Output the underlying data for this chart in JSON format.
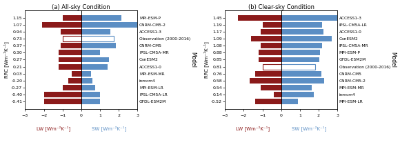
{
  "panel_a": {
    "title": "(a) All-sky Condition",
    "models": [
      "MPI-ESM-P",
      "CNRM-CM5-2",
      "ACCESS1-3",
      "Observation (2000-2016)",
      "CNRM-CM5",
      "IPSL-CM5A-MR",
      "CanESM2",
      "ACCESS1-0",
      "MPI-ESM-MR",
      "inmcm4",
      "MPI-ESM-LR",
      "IPSL-CM5A-LR",
      "GFDL-ESM2M"
    ],
    "rrc": [
      1.15,
      1.07,
      0.94,
      0.73,
      0.37,
      0.3,
      0.27,
      0.21,
      0.03,
      -0.2,
      -0.27,
      -0.4,
      -0.41
    ],
    "lw": [
      -1.0,
      -2.1,
      -1.1,
      -1.0,
      -1.1,
      -1.2,
      -1.2,
      -1.2,
      -0.5,
      -0.7,
      -1.0,
      -2.0,
      -2.0
    ],
    "sw": [
      2.15,
      3.17,
      1.55,
      1.73,
      1.87,
      1.0,
      1.47,
      1.41,
      0.53,
      0.6,
      0.73,
      1.0,
      1.0
    ],
    "obs_idx": 3,
    "xlim": [
      -3,
      3
    ],
    "xticks": [
      -3,
      -2,
      -1,
      0,
      1,
      2,
      3
    ],
    "xlabel_lw": "LW [Wm⁻²K⁻¹]",
    "xlabel_sw": "SW [Wm⁻²K⁻¹]",
    "ylabel": "RRC [Wm⁻²K⁻¹]",
    "ylabel_label": "Model"
  },
  "panel_b": {
    "title": "(b) Clear-sky Condition",
    "models": [
      "ACCESS1-3",
      "IPSL-CM5A-LR",
      "ACCESS1-0",
      "CanESM2",
      "IPSL-CM5A-MR",
      "MPI-ESM-P",
      "GFDL-ESM2M",
      "Observation (2000-2016)",
      "CNRM-CM5",
      "CNRM-CM5-2",
      "MPI-ESM-MR",
      "inmcm4",
      "MPI-ESM-LR"
    ],
    "rrc": [
      1.45,
      1.19,
      1.17,
      1.09,
      1.08,
      0.88,
      0.85,
      0.81,
      0.76,
      0.58,
      0.54,
      0.14,
      -0.52
    ],
    "lw": [
      -2.3,
      -1.0,
      -1.1,
      -1.6,
      -1.1,
      -1.2,
      -1.2,
      -1.0,
      -1.4,
      -1.7,
      -1.1,
      -0.4,
      -1.4
    ],
    "sw": [
      3.75,
      2.19,
      2.27,
      2.69,
      2.18,
      2.08,
      2.05,
      1.81,
      2.16,
      2.28,
      1.64,
      1.74,
      0.88
    ],
    "obs_idx": 7,
    "xlim": [
      -3,
      3
    ],
    "xticks": [
      -3,
      -2,
      -1,
      0,
      1,
      2,
      3
    ],
    "xlabel_lw": "LW [Wm⁻²K⁻¹]",
    "xlabel_sw": "SW [Wm⁻²K⁻¹]",
    "ylabel": "RRC [Wm⁻²K⁻¹]",
    "ylabel_label": "Model"
  },
  "bar_color_lw": "#8B1A1A",
  "bar_color_sw": "#5B8EC4",
  "bar_height": 0.78,
  "fig_width": 5.8,
  "fig_height": 2.13
}
